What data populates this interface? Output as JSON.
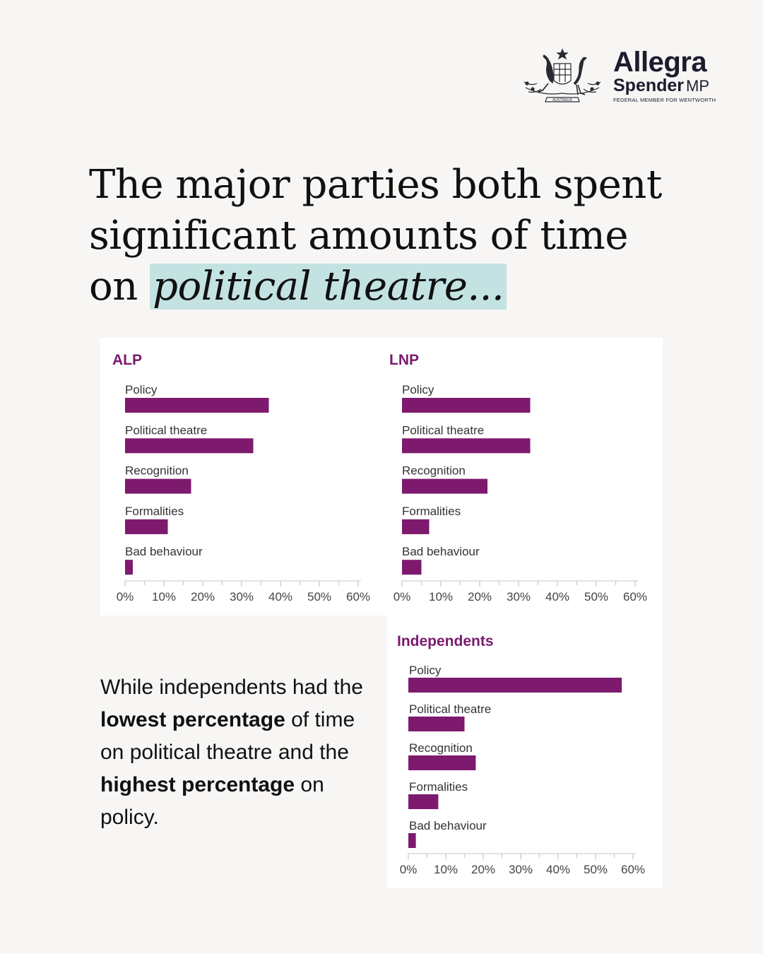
{
  "brand": {
    "first": "Allegra",
    "last": "Spender",
    "suffix": "MP",
    "subtitle": "FEDERAL MEMBER FOR WENTWORTH",
    "crest_text": "AUSTRALIA"
  },
  "headline": {
    "line1": "The major parties both spent",
    "line2": "significant amounts of time",
    "line3_prefix": "on ",
    "line3_highlight": "political theatre..."
  },
  "body": {
    "p1": "While independents had the ",
    "b1": "lowest percentage",
    "p2": " of time on political theatre and the ",
    "b2": "highest percentage",
    "p3": " on policy."
  },
  "colors": {
    "bar": "#7d1a6e",
    "title": "#7a1a6e",
    "highlight": "#c3e3e2",
    "background": "#f8f6f4"
  },
  "chart_data": [
    {
      "type": "bar",
      "orientation": "horizontal",
      "title": "ALP",
      "categories": [
        "Policy",
        "Political theatre",
        "Recognition",
        "Formalities",
        "Bad behaviour"
      ],
      "values": [
        37,
        33,
        17,
        11,
        2
      ],
      "unit": "%",
      "xlim": [
        0,
        60
      ],
      "ticks": [
        "0%",
        "10%",
        "20%",
        "30%",
        "40%",
        "50%",
        "60%"
      ]
    },
    {
      "type": "bar",
      "orientation": "horizontal",
      "title": "LNP",
      "categories": [
        "Policy",
        "Political theatre",
        "Recognition",
        "Formalities",
        "Bad behaviour"
      ],
      "values": [
        33,
        33,
        22,
        7,
        5
      ],
      "unit": "%",
      "xlim": [
        0,
        60
      ],
      "ticks": [
        "0%",
        "10%",
        "20%",
        "30%",
        "40%",
        "50%",
        "60%"
      ]
    },
    {
      "type": "bar",
      "orientation": "horizontal",
      "title": "Independents",
      "categories": [
        "Policy",
        "Political theatre",
        "Recognition",
        "Formalities",
        "Bad behaviour"
      ],
      "values": [
        57,
        15,
        18,
        8,
        2
      ],
      "unit": "%",
      "xlim": [
        0,
        60
      ],
      "ticks": [
        "0%",
        "10%",
        "20%",
        "30%",
        "40%",
        "50%",
        "60%"
      ]
    }
  ]
}
